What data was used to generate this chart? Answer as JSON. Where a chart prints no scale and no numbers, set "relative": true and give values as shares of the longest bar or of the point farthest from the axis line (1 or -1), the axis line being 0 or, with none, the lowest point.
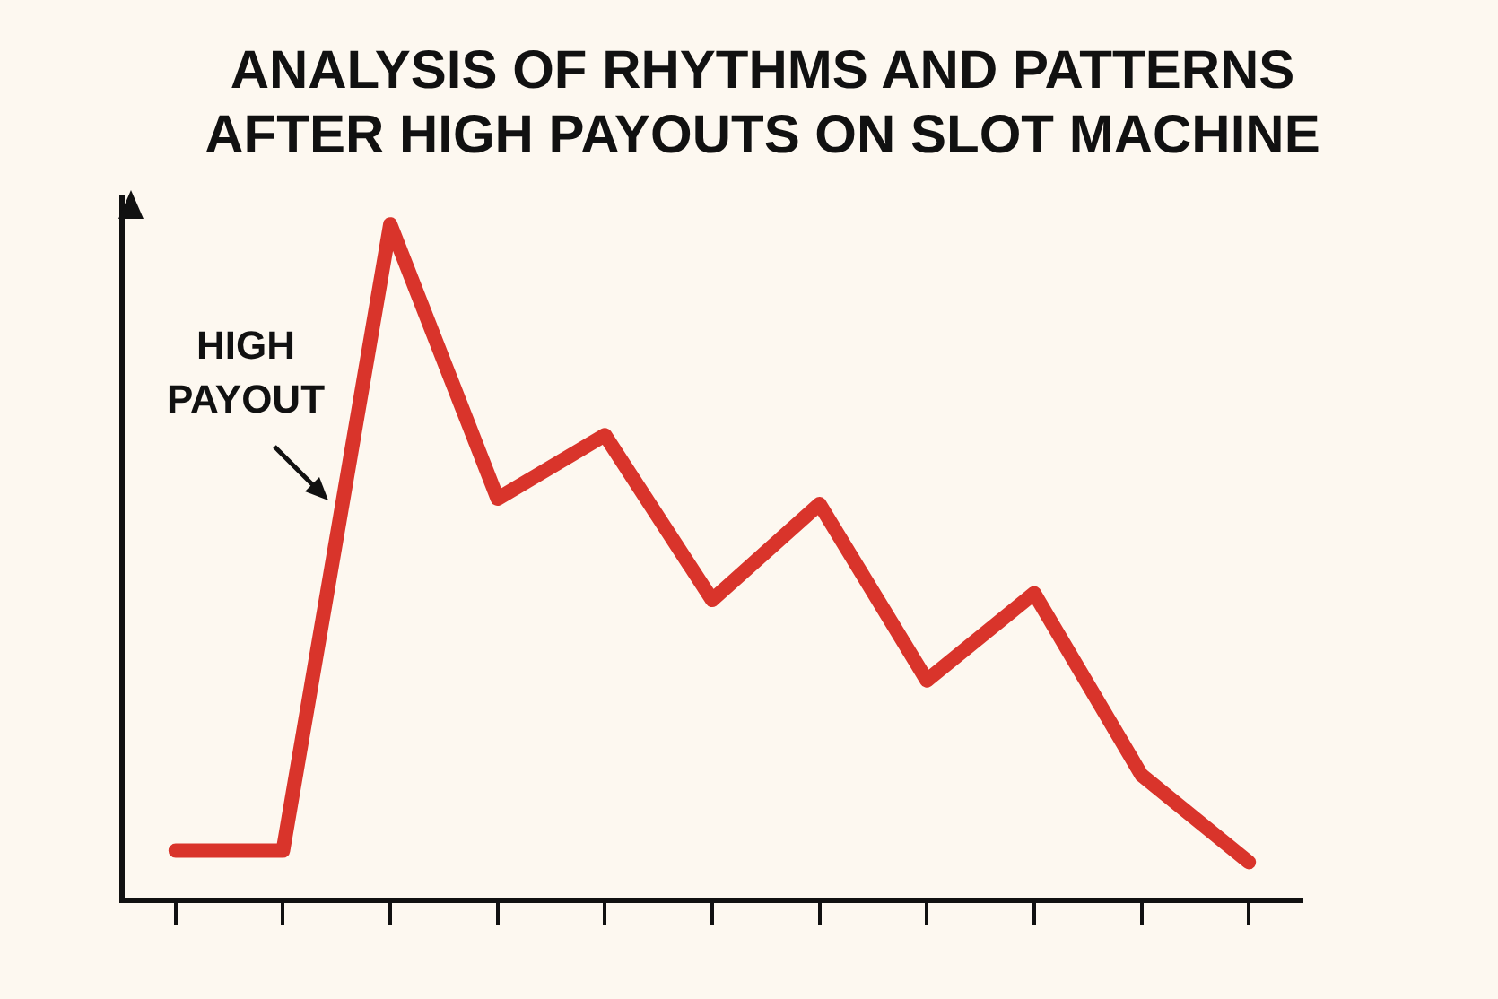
{
  "chart_data": {
    "type": "line",
    "title": "ANALYSIS OF RHYTHMS AND PATTERNS AFTER HIGH PAYOUTS ON SLOT MACHINE",
    "relative": true,
    "categories": [
      null,
      null,
      null,
      null,
      null,
      null,
      null,
      null,
      null,
      null,
      null
    ],
    "series": [
      {
        "color": "#d9342b",
        "values": [
          0.073,
          0.073,
          1,
          0.594,
          0.688,
          0.444,
          0.586,
          0.325,
          0.454,
          0.185,
          0.056
        ]
      }
    ],
    "annotations": [
      "HIGH PAYOUT"
    ],
    "marker": "none",
    "line_style": "solid",
    "legend": false,
    "grid": false
  }
}
